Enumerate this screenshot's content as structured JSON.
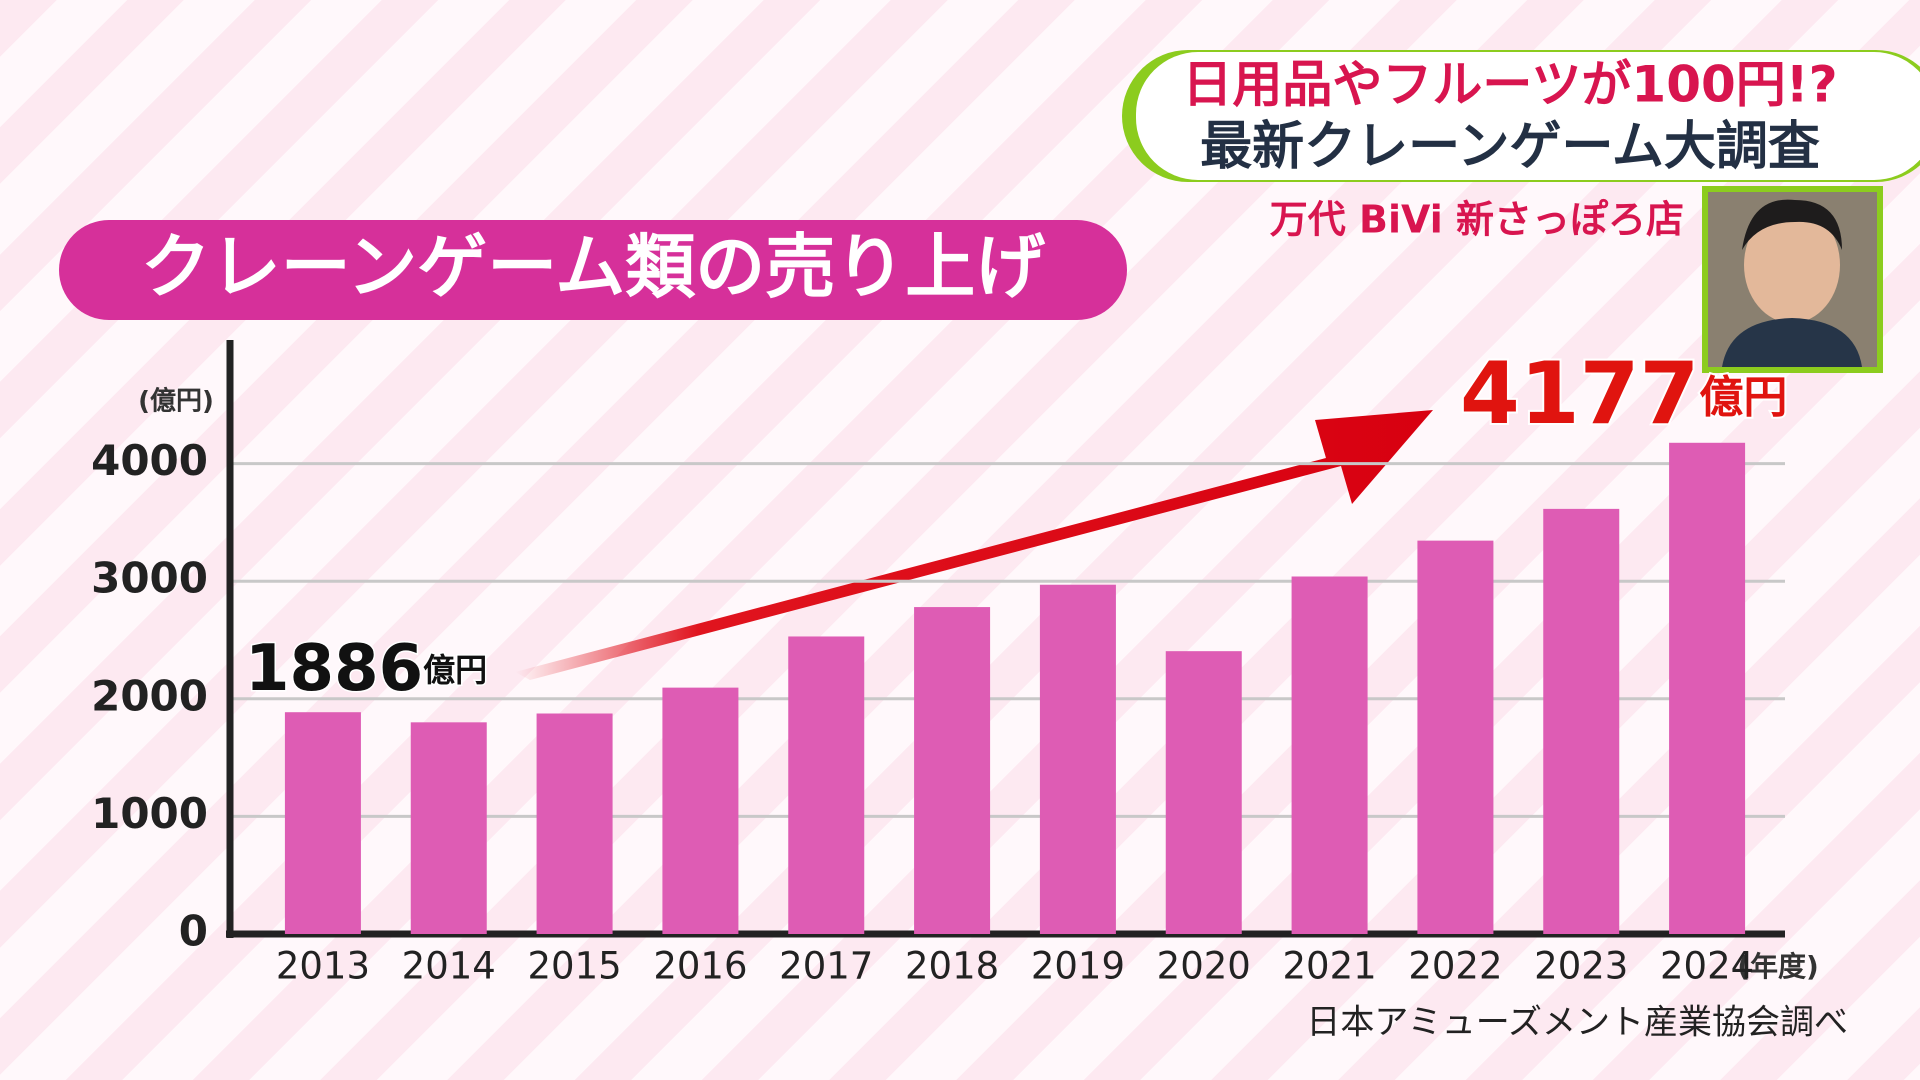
{
  "header": {
    "headline": "日用品やフルーツが100円!?",
    "subheadline": "最新クレーンゲーム大調査",
    "location": "万代 BiVi 新さっぽろ店"
  },
  "chart_data": {
    "type": "bar",
    "title": "クレーンゲーム類の売り上げ",
    "y_label": "(億円)",
    "x_label": "(年度)",
    "unit_label": "億円",
    "source": "日本アミューズメント産業協会調べ",
    "categories": [
      "2013",
      "2014",
      "2015",
      "2016",
      "2017",
      "2018",
      "2019",
      "2020",
      "2021",
      "2022",
      "2023",
      "2024"
    ],
    "values": [
      1886,
      1800,
      1875,
      2095,
      2530,
      2780,
      2970,
      2405,
      3040,
      3345,
      3615,
      4177
    ],
    "color": "#de5cb4",
    "ylim": [
      0,
      5000
    ],
    "yticks": [
      0,
      1000,
      2000,
      3000,
      4000
    ],
    "grid": true
  }
}
